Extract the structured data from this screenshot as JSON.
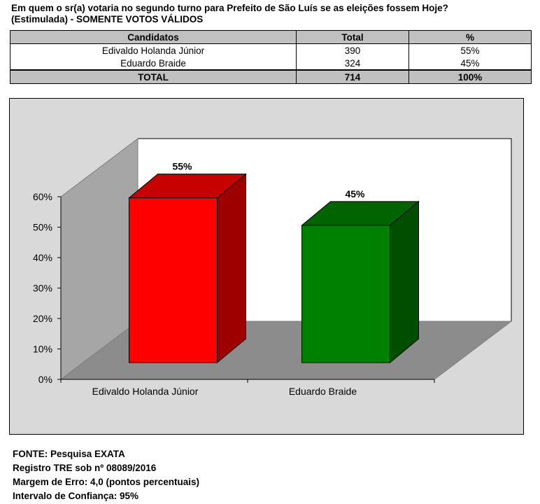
{
  "question": {
    "line1": "Em quem o sr(a) votaria no segundo turno para Prefeito de São Luís se as eleições fossem Hoje?",
    "line2": "(Estimulada) - SOMENTE VOTOS VÁLIDOS"
  },
  "table": {
    "headers": [
      "Candidatos",
      "Total",
      "%"
    ],
    "rows": [
      {
        "candidate": "Edivaldo Holanda Júnior",
        "total": "390",
        "pct": "55%"
      },
      {
        "candidate": "Eduardo Braide",
        "total": "324",
        "pct": "45%"
      }
    ],
    "total_row": {
      "label": "TOTAL",
      "total": "714",
      "pct": "100%"
    }
  },
  "chart_data": {
    "type": "bar",
    "categories": [
      "Edivaldo Holanda Júnior",
      "Eduardo Braide"
    ],
    "values": [
      55,
      45
    ],
    "data_labels": [
      "55%",
      "45%"
    ],
    "colors": [
      "#ff0000",
      "#008000"
    ],
    "ylim": [
      0,
      60
    ],
    "yticks": [
      "0%",
      "10%",
      "20%",
      "30%",
      "40%",
      "50%",
      "60%"
    ],
    "grid": false,
    "three_d": true
  },
  "footer": {
    "fonte": "FONTE: Pesquisa EXATA",
    "registro": "Registro TRE sob nº 08089/2016",
    "margem": "Margem de Erro: 4,0 (pontos percentuais)",
    "intervalo": "Intervalo de Confiança: 95%"
  }
}
